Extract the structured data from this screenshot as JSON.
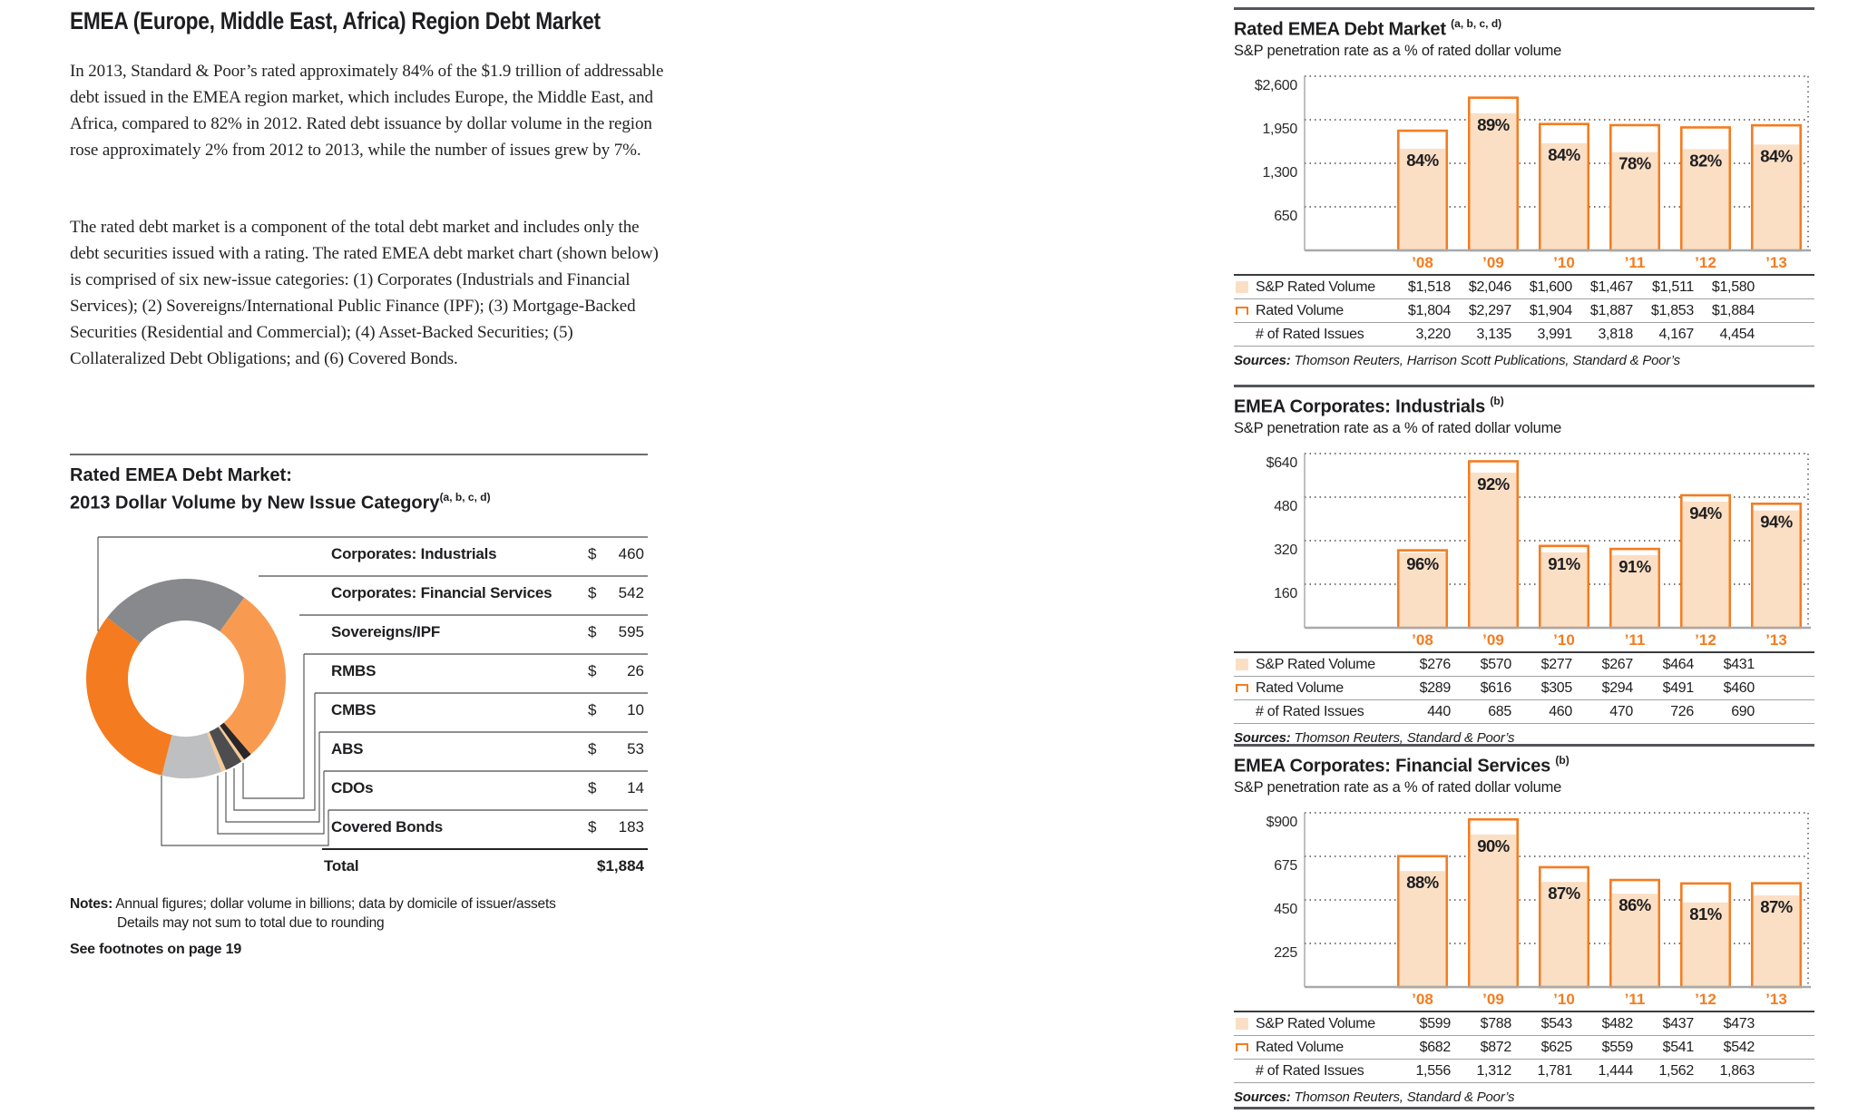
{
  "left": {
    "title": "EMEA (Europe, Middle East, Africa) Region Debt Market",
    "para1": "In 2013, Standard & Poor’s rated approximately 84% of the $1.9 trillion of addressable debt issued in the EMEA region market, which includes Europe, the Middle East, and Africa, compared to 82% in 2012. Rated debt issuance by dollar volume in the region rose approximately 2% from 2012 to 2013, while the number of issues grew by 7%.",
    "para2": "The rated debt market is a component of the total debt market and includes only the debt securities issued with a rating. The rated EMEA debt market chart (shown below) is comprised of six new-issue categories: (1) Corporates (Industrials and Financial Services); (2) Sovereigns/International Public Finance (IPF); (3) Mortgage-Backed Securities (Residential and Commercial); (4) Asset-Backed Securities; (5) Collateralized Debt Obligations; and (6) Covered Bonds.",
    "notes_label": "Notes:",
    "notes_line1": " Annual figures; dollar volume in billions; data by domicile of issuer/assets",
    "notes_line2": "Details may not sum to total due to rounding",
    "footnote_link": "See footnotes on page 19"
  },
  "chart_data": [
    {
      "type": "pie",
      "subtype": "donut",
      "title_line1": "Rated EMEA Debt Market:",
      "title_line2": "2013 Dollar Volume by New Issue Category",
      "superscript": "(a, b, c, d)",
      "currency": "$",
      "units": "billions USD",
      "segments": [
        {
          "label": "Corporates: Industrials",
          "value": 460,
          "display": "460",
          "color": "#87898c"
        },
        {
          "label": "Corporates: Financial Services",
          "value": 542,
          "display": "542",
          "color": "#f89b51"
        },
        {
          "label": "Sovereigns/IPF",
          "value": 595,
          "display": "595",
          "color": "#f47b20"
        },
        {
          "label": "RMBS",
          "value": 26,
          "display": "26",
          "color": "#2b2728"
        },
        {
          "label": "CMBS",
          "value": 10,
          "display": "10",
          "color": "#f7ca97"
        },
        {
          "label": "ABS",
          "value": 53,
          "display": "53",
          "color": "#4d4d4f"
        },
        {
          "label": "CDOs",
          "value": 14,
          "display": "14",
          "color": "#f7ca97"
        },
        {
          "label": "Covered Bonds",
          "value": 183,
          "display": "183",
          "color": "#bdbfc1"
        }
      ],
      "total_label": "Total",
      "total_display": "$1,884"
    },
    {
      "type": "bar",
      "title": "Rated EMEA Debt Market",
      "superscript": "(a, b, c, d)",
      "subtitle": "S&P penetration rate as a % of rated dollar volume",
      "y_ticks": [
        "$2,600",
        "1,950",
        "1,300",
        "650"
      ],
      "y_max": 2600,
      "ylim": [
        0,
        2600
      ],
      "categories": [
        "’08",
        "’09",
        "’10",
        "’11",
        "’12",
        "’13"
      ],
      "rated_volume": [
        1804,
        2297,
        1904,
        1887,
        1853,
        1884
      ],
      "sp_rated_volume": [
        1518,
        2046,
        1600,
        1467,
        1511,
        1580
      ],
      "pct_labels": [
        "84%",
        "89%",
        "84%",
        "78%",
        "82%",
        "84%"
      ],
      "table_rows": [
        {
          "label": "S&P Rated Volume",
          "swatch": "fill",
          "values": [
            "$1,518",
            "$2,046",
            "$1,600",
            "$1,467",
            "$1,511",
            "$1,580"
          ]
        },
        {
          "label": "Rated Volume",
          "swatch": "outline",
          "values": [
            "$1,804",
            "$2,297",
            "$1,904",
            "$1,887",
            "$1,853",
            "$1,884"
          ]
        },
        {
          "label": "# of Rated Issues",
          "swatch": "none",
          "values": [
            "3,220",
            "3,135",
            "3,991",
            "3,818",
            "4,167",
            "4,454"
          ]
        }
      ],
      "sources_label": "Sources:",
      "sources_text": " Thomson Reuters, Harrison Scott Publications, Standard & Poor’s"
    },
    {
      "type": "bar",
      "title": "EMEA Corporates: Industrials",
      "superscript": "(b)",
      "subtitle": "S&P penetration rate as a % of rated dollar volume",
      "y_ticks": [
        "$640",
        "480",
        "320",
        "160"
      ],
      "y_max": 640,
      "ylim": [
        0,
        640
      ],
      "categories": [
        "’08",
        "’09",
        "’10",
        "’11",
        "’12",
        "’13"
      ],
      "rated_volume": [
        289,
        616,
        305,
        294,
        491,
        460
      ],
      "sp_rated_volume": [
        276,
        570,
        277,
        267,
        464,
        431
      ],
      "pct_labels": [
        "96%",
        "92%",
        "91%",
        "91%",
        "94%",
        "94%"
      ],
      "table_rows": [
        {
          "label": "S&P Rated Volume",
          "swatch": "fill",
          "values": [
            "$276",
            "$570",
            "$277",
            "$267",
            "$464",
            "$431"
          ]
        },
        {
          "label": "Rated Volume",
          "swatch": "outline",
          "values": [
            "$289",
            "$616",
            "$305",
            "$294",
            "$491",
            "$460"
          ]
        },
        {
          "label": "# of Rated Issues",
          "swatch": "none",
          "values": [
            "440",
            "685",
            "460",
            "470",
            "726",
            "690"
          ]
        }
      ],
      "sources_label": "Sources:",
      "sources_text": " Thomson Reuters, Standard & Poor’s"
    },
    {
      "type": "bar",
      "title": "EMEA Corporates: Financial Services",
      "superscript": "(b)",
      "subtitle": "S&P penetration rate as a % of rated dollar volume",
      "y_ticks": [
        "$900",
        "675",
        "450",
        "225"
      ],
      "y_max": 900,
      "ylim": [
        0,
        900
      ],
      "categories": [
        "’08",
        "’09",
        "’10",
        "’11",
        "’12",
        "’13"
      ],
      "rated_volume": [
        682,
        872,
        625,
        559,
        541,
        542
      ],
      "sp_rated_volume": [
        599,
        788,
        543,
        482,
        437,
        473
      ],
      "pct_labels": [
        "88%",
        "90%",
        "87%",
        "86%",
        "81%",
        "87%"
      ],
      "table_rows": [
        {
          "label": "S&P Rated Volume",
          "swatch": "fill",
          "values": [
            "$599",
            "$788",
            "$543",
            "$482",
            "$437",
            "$473"
          ]
        },
        {
          "label": "Rated Volume",
          "swatch": "outline",
          "values": [
            "$682",
            "$872",
            "$625",
            "$559",
            "$541",
            "$542"
          ]
        },
        {
          "label": "# of Rated Issues",
          "swatch": "none",
          "values": [
            "1,556",
            "1,312",
            "1,781",
            "1,444",
            "1,562",
            "1,863"
          ]
        }
      ],
      "sources_label": "Sources:",
      "sources_text": " Thomson Reuters, Standard & Poor’s"
    }
  ],
  "colors": {
    "accent_orange": "#f47c20",
    "bar_fill_peach": "#fbdfc4",
    "text": "#1e1e21",
    "grid_dots": "#4a4a4c",
    "axis": "#939598",
    "baseline": "#a7a9aa",
    "rule": "#54555a",
    "row_separator": "#9ea0a3"
  }
}
